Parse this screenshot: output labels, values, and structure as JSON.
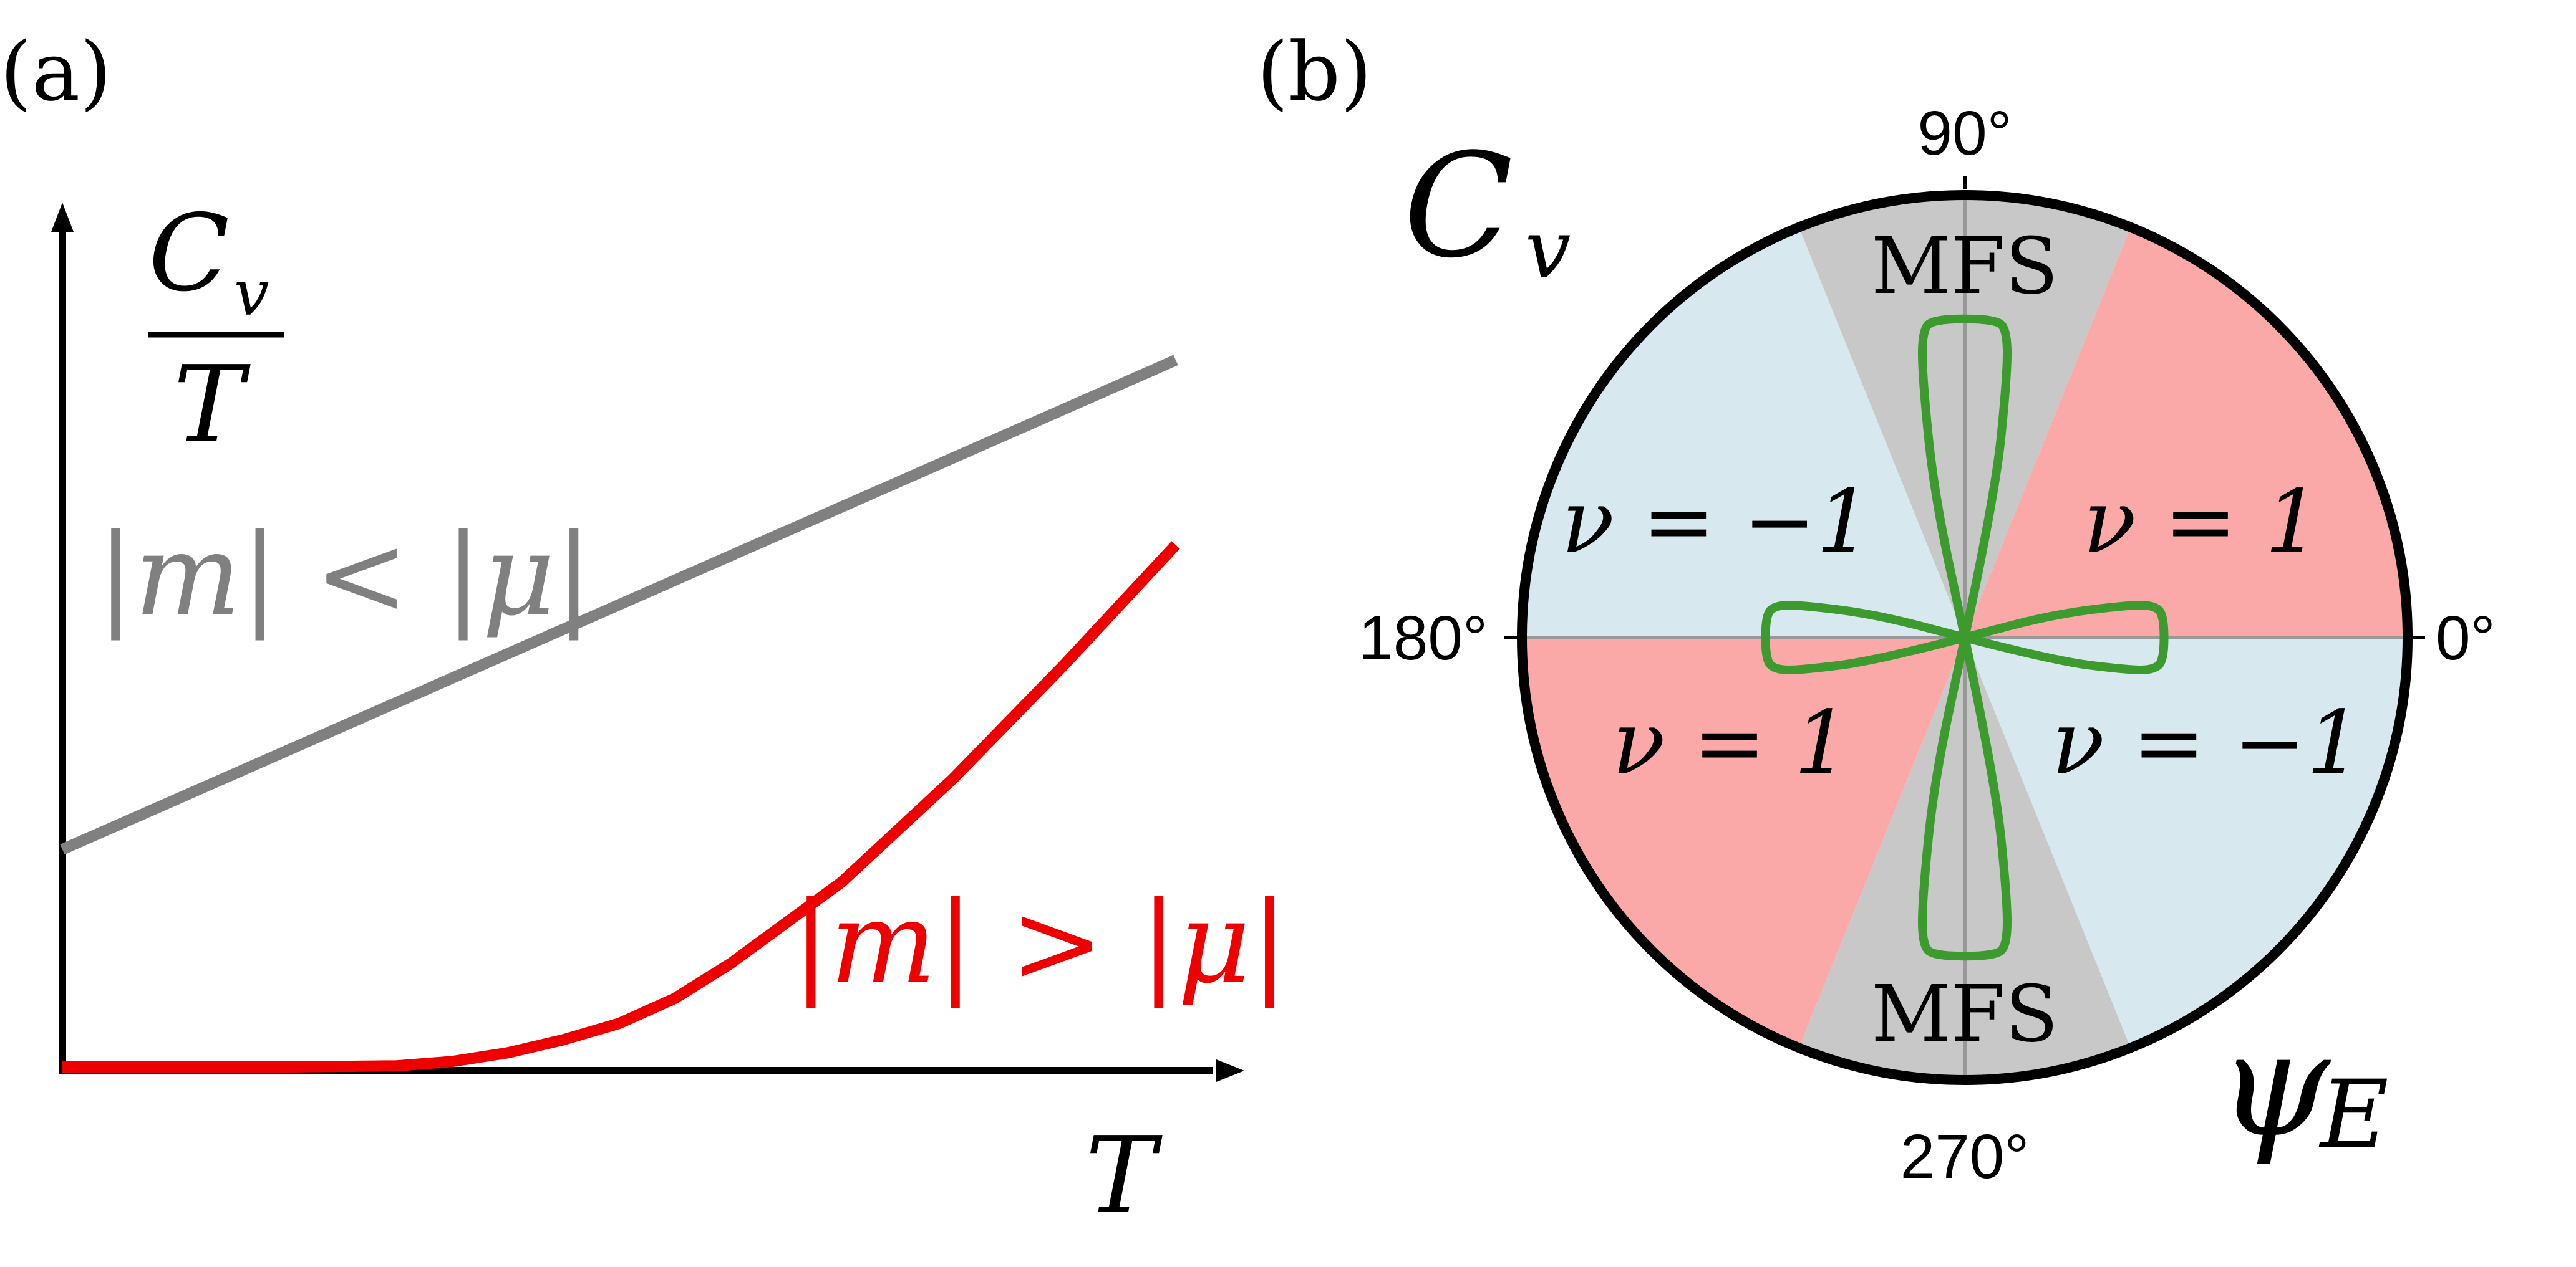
{
  "panel_a": {
    "label": "(a)",
    "ylabel_num": "C",
    "ylabel_sub": "v",
    "ylabel_den": "T",
    "xlabel": "T",
    "colors": {
      "gray": "#808080",
      "red": "#ee0000",
      "axis": "#000000"
    }
  },
  "panel_b": {
    "label": "(b)",
    "corner_label_c": "C",
    "corner_label_c_sub": "v",
    "corner_label_psi": "ψ",
    "corner_label_psi_sub": "E",
    "angle_labels": [
      "0°",
      "90°",
      "180°",
      "270°"
    ],
    "sector_labels": {
      "upper_left": "ν = −1",
      "upper_right": "ν = 1",
      "lower_left": "ν = 1",
      "lower_right": "ν = −1",
      "top": "MFS",
      "bottom": "MFS"
    },
    "colors": {
      "blue": "#d7e8ee",
      "pink": "#fba8a8",
      "gray": "#c8c8c8",
      "green": "#3c9a2f",
      "rim": "#000000",
      "axis": "#999999"
    }
  },
  "chart_data": [
    {
      "type": "line",
      "panel": "(a)",
      "title": "",
      "xlabel": "T",
      "ylabel": "C_v / T",
      "series": [
        {
          "name": "|m| < |μ|",
          "color": "#808080",
          "x": [
            0,
            1
          ],
          "y": [
            0.2,
            0.65
          ]
        },
        {
          "name": "|m| > |μ|",
          "color": "#ee0000",
          "x": [
            0,
            0.1,
            0.2,
            0.3,
            0.35,
            0.4,
            0.45,
            0.5,
            0.55,
            0.6,
            0.7,
            0.8,
            0.9,
            1.0
          ],
          "y": [
            0.0,
            0.0,
            0.0,
            0.001,
            0.005,
            0.013,
            0.025,
            0.04,
            0.063,
            0.095,
            0.17,
            0.265,
            0.37,
            0.48
          ]
        }
      ],
      "axes": {
        "arrows": true,
        "ticks": "none",
        "grid": false
      }
    },
    {
      "type": "polar",
      "panel": "(b)",
      "title": "",
      "angular_tick_labels": [
        "0°",
        "90°",
        "180°",
        "270°"
      ],
      "regions": [
        {
          "label": "ν = 1",
          "from_deg": 0,
          "to_deg": 68,
          "color": "#fba8a8"
        },
        {
          "label": "MFS",
          "from_deg": 68,
          "to_deg": 112,
          "color": "#c8c8c8"
        },
        {
          "label": "ν = −1",
          "from_deg": 112,
          "to_deg": 180,
          "color": "#d7e8ee"
        },
        {
          "label": "ν = 1",
          "from_deg": 180,
          "to_deg": 248,
          "color": "#fba8a8"
        },
        {
          "label": "MFS",
          "from_deg": 248,
          "to_deg": 292,
          "color": "#c8c8c8"
        },
        {
          "label": "ν = −1",
          "from_deg": 292,
          "to_deg": 360,
          "color": "#d7e8ee"
        }
      ],
      "curve": {
        "name": "C_v",
        "color": "#3c9a2f",
        "theta_deg": [
          0,
          90,
          180,
          270
        ],
        "r": [
          0.45,
          0.72,
          0.45,
          0.72
        ]
      },
      "radial_axis_label": "C_v",
      "angular_axis_label": "ψ_E"
    }
  ]
}
